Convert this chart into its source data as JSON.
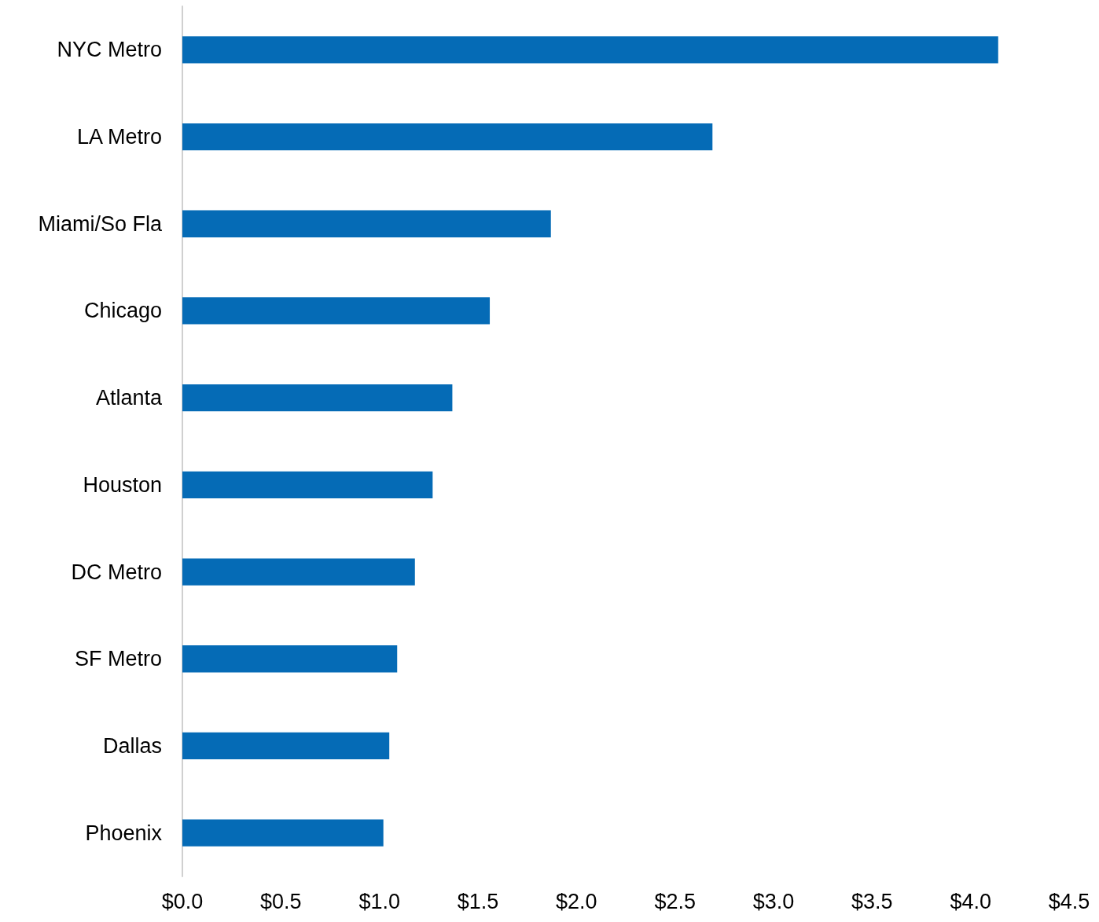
{
  "chart_data": {
    "type": "bar",
    "orientation": "horizontal",
    "categories": [
      "NYC Metro",
      "LA Metro",
      "Miami/So Fla",
      "Chicago",
      "Atlanta",
      "Houston",
      "DC Metro",
      "SF Metro",
      "Dallas",
      "Phoenix"
    ],
    "values": [
      4.14,
      2.69,
      1.87,
      1.56,
      1.37,
      1.27,
      1.18,
      1.09,
      1.05,
      1.02
    ],
    "color": "#056bb6",
    "xlim": [
      0,
      4.5
    ],
    "xticks": [
      {
        "value": 0,
        "label": "$0.0"
      },
      {
        "value": 0.5,
        "label": "$0.5"
      },
      {
        "value": 1,
        "label": "$1.0"
      },
      {
        "value": 1.5,
        "label": "$1.5"
      },
      {
        "value": 2,
        "label": "$2.0"
      },
      {
        "value": 2.5,
        "label": "$2.5"
      },
      {
        "value": 3,
        "label": "$3.0"
      },
      {
        "value": 3.5,
        "label": "$3.5"
      },
      {
        "value": 4,
        "label": "$4.0"
      },
      {
        "value": 4.5,
        "label": "$4.5"
      }
    ],
    "grid": false
  }
}
